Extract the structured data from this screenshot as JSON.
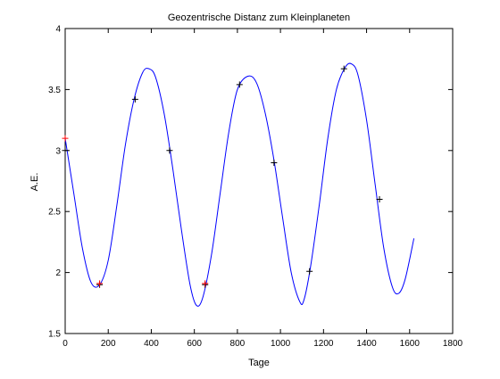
{
  "chart_data": {
    "type": "line",
    "title": "Geozentrische Distanz zum Kleinplaneten",
    "xlabel": "Tage",
    "ylabel": "A.E.",
    "xlim": [
      0,
      1800
    ],
    "ylim": [
      1.5,
      4
    ],
    "xticks": [
      0,
      200,
      400,
      600,
      800,
      1000,
      1200,
      1400,
      1600,
      1800
    ],
    "yticks": [
      1.5,
      2,
      2.5,
      3,
      3.5,
      4
    ],
    "grid": false,
    "legend": "none",
    "series": [
      {
        "kind": "line",
        "color": "#0000ff",
        "x": [
          0,
          40,
          80,
          120,
          160,
          200,
          240,
          280,
          320,
          360,
          390,
          420,
          460,
          500,
          540,
          580,
          610,
          640,
          680,
          720,
          760,
          800,
          850,
          890,
          930,
          970,
          1010,
          1050,
          1090,
          1110,
          1140,
          1180,
          1220,
          1260,
          1300,
          1330,
          1360,
          1400,
          1440,
          1480,
          1520,
          1550,
          1580,
          1620
        ],
        "y": [
          3.1,
          2.65,
          2.2,
          1.92,
          1.9,
          2.1,
          2.55,
          3.05,
          3.42,
          3.64,
          3.67,
          3.6,
          3.3,
          2.85,
          2.35,
          1.9,
          1.73,
          1.8,
          2.15,
          2.65,
          3.15,
          3.5,
          3.61,
          3.55,
          3.3,
          2.92,
          2.45,
          2.0,
          1.76,
          1.78,
          2.05,
          2.55,
          3.1,
          3.5,
          3.68,
          3.71,
          3.62,
          3.25,
          2.72,
          2.2,
          1.88,
          1.83,
          1.95,
          2.28
        ]
      },
      {
        "kind": "markers",
        "marker": "+",
        "color": "#000000",
        "x": [
          0,
          160,
          325,
          485,
          650,
          810,
          970,
          1135,
          1295,
          1460
        ],
        "y": [
          3.0,
          1.9,
          3.42,
          3.0,
          1.9,
          3.54,
          2.9,
          2.01,
          3.67,
          2.6
        ]
      },
      {
        "kind": "markers",
        "marker": "+",
        "color": "#ff0000",
        "x": [
          0,
          160,
          650
        ],
        "y": [
          3.1,
          1.91,
          1.91
        ]
      }
    ]
  }
}
